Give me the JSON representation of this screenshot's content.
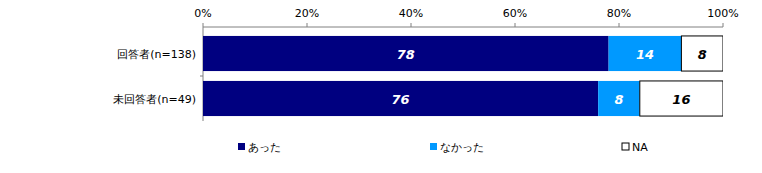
{
  "chart_data": {
    "type": "bar",
    "orientation": "horizontal",
    "stacked": true,
    "data_labels": true,
    "grid": false,
    "legend": "bottom",
    "categories": [
      "回答者(n=138)",
      "未回答者(n=49)"
    ],
    "series": [
      {
        "name": "あった",
        "color": "#000080",
        "values": [
          78,
          76
        ]
      },
      {
        "name": "なかった",
        "color": "#0099ff",
        "values": [
          14,
          8
        ]
      },
      {
        "name": "NA",
        "color": "#ffffff",
        "values": [
          8,
          16
        ]
      }
    ],
    "xlim": [
      0,
      100
    ],
    "xticks": [
      {
        "value": 0,
        "label": "0%"
      },
      {
        "value": 20,
        "label": "20%"
      },
      {
        "value": 40,
        "label": "40%"
      },
      {
        "value": 60,
        "label": "60%"
      },
      {
        "value": 80,
        "label": "80%"
      },
      {
        "value": 100,
        "label": "100%"
      }
    ]
  }
}
